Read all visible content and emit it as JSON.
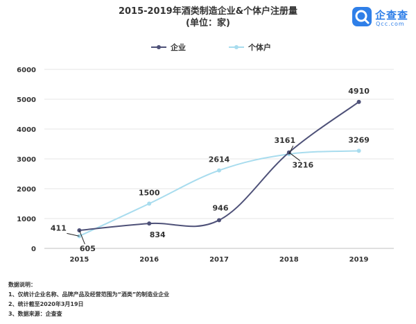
{
  "title": "2015-2019年酒类制造企业&个体户注册量",
  "subtitle": "(单位：家)",
  "logo": {
    "name": "企查查",
    "domain": "Qcc.com"
  },
  "notes": {
    "heading": "数据说明：",
    "items": [
      "1、仅统计企业名称、品牌产品及经营范围为“酒类”的制造业企业",
      "2、统计截至2020年3月19日",
      "3、数据来源：企查查"
    ]
  },
  "chart_data": {
    "type": "line",
    "title": "2015-2019年酒类制造企业&个体户注册量",
    "subtitle": "(单位：家)",
    "categories": [
      "2015",
      "2016",
      "2017",
      "2018",
      "2019"
    ],
    "ylim": [
      0,
      6000
    ],
    "yticks": [
      0,
      1000,
      2000,
      3000,
      4000,
      5000,
      6000
    ],
    "grid": true,
    "legend": "top-center",
    "series": [
      {
        "name": "企业",
        "values": [
          605,
          834,
          946,
          3216,
          4910
        ],
        "color": "#4e5178",
        "markers": true
      },
      {
        "name": "个体户",
        "values": [
          411,
          1500,
          2614,
          3161,
          3269
        ],
        "color": "#a8dcee",
        "markers": true
      }
    ]
  }
}
